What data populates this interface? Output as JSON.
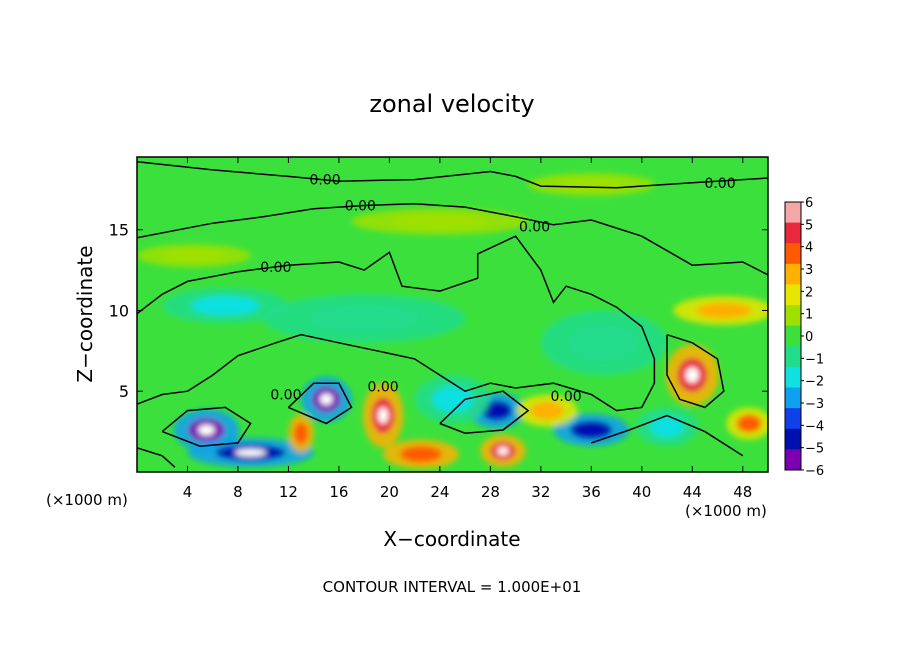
{
  "chart_data": {
    "type": "heatmap",
    "title": "zonal velocity",
    "xlabel": "X−coordinate",
    "ylabel": "Z−coordinate",
    "x_unit_left": "(×1000 m)",
    "x_unit_right": "(×1000 m)",
    "footer": "CONTOUR INTERVAL = 1.000E+01",
    "xlim": [
      0,
      50
    ],
    "ylim": [
      0,
      19.5
    ],
    "x_ticks": [
      4,
      8,
      12,
      16,
      20,
      24,
      28,
      32,
      36,
      40,
      44,
      48
    ],
    "y_ticks": [
      5,
      10,
      15
    ],
    "colorbar": {
      "range": [
        -6,
        6
      ],
      "ticks": [
        "6",
        "5",
        "4",
        "3",
        "2",
        "1",
        "0",
        "−1",
        "−2",
        "−3",
        "−4",
        "−5",
        "−6"
      ],
      "colors": [
        "#f4a7a7",
        "#e8283c",
        "#ff5a00",
        "#ffb000",
        "#e6e600",
        "#a0e000",
        "#3ce03c",
        "#22dc8c",
        "#10e0e0",
        "#10a0f0",
        "#1040e8",
        "#0010b0",
        "#7a00b0"
      ]
    },
    "contour_labels": [
      {
        "text": "0.00",
        "x": 14.9,
        "z": 18.1
      },
      {
        "text": "0.00",
        "x": 46.2,
        "z": 17.9
      },
      {
        "text": "0.00",
        "x": 17.7,
        "z": 16.5
      },
      {
        "text": "0.00",
        "x": 31.5,
        "z": 15.2
      },
      {
        "text": "0.00",
        "x": 11.0,
        "z": 12.7
      },
      {
        "text": "0.00",
        "x": 11.8,
        "z": 4.8
      },
      {
        "text": "0.00",
        "x": 19.5,
        "z": 5.3
      },
      {
        "text": "0.00",
        "x": 34.0,
        "z": 4.7
      }
    ],
    "features": [
      {
        "x": 5.5,
        "z": 2.6,
        "value": -5.5,
        "rx": 2.6,
        "rz": 1.3
      },
      {
        "x": 15.0,
        "z": 4.5,
        "value": -5.5,
        "rx": 2.0,
        "rz": 1.4
      },
      {
        "x": 28.5,
        "z": 3.8,
        "value": -4.5,
        "rx": 2.2,
        "rz": 1.1
      },
      {
        "x": 36.0,
        "z": 2.6,
        "value": -4.5,
        "rx": 3.0,
        "rz": 1.0
      },
      {
        "x": 9.0,
        "z": 1.2,
        "value": -5.0,
        "rx": 5.0,
        "rz": 0.9
      },
      {
        "x": 19.5,
        "z": 3.5,
        "value": 5.5,
        "rx": 1.6,
        "rz": 2.0
      },
      {
        "x": 13.0,
        "z": 2.4,
        "value": 4.5,
        "rx": 1.0,
        "rz": 1.2
      },
      {
        "x": 29.0,
        "z": 1.3,
        "value": 5.0,
        "rx": 1.8,
        "rz": 1.0
      },
      {
        "x": 44.0,
        "z": 6.0,
        "value": 5.5,
        "rx": 2.1,
        "rz": 1.9
      },
      {
        "x": 32.5,
        "z": 3.8,
        "value": 3.5,
        "rx": 2.4,
        "rz": 1.0
      },
      {
        "x": 22.5,
        "z": 1.1,
        "value": 4.5,
        "rx": 3.0,
        "rz": 0.9
      },
      {
        "x": 46.5,
        "z": 10.0,
        "value": 3.5,
        "rx": 4.0,
        "rz": 0.9
      },
      {
        "x": 48.5,
        "z": 3.0,
        "value": 4.0,
        "rx": 1.8,
        "rz": 1.0
      },
      {
        "x": 4.5,
        "z": 13.4,
        "value": 1.5,
        "rx": 4.5,
        "rz": 0.7
      },
      {
        "x": 24.0,
        "z": 15.5,
        "value": 1.5,
        "rx": 7.0,
        "rz": 0.8
      },
      {
        "x": 36.0,
        "z": 17.8,
        "value": 1.2,
        "rx": 5.0,
        "rz": 0.7
      },
      {
        "x": 7.0,
        "z": 10.3,
        "value": -2.0,
        "rx": 5.0,
        "rz": 1.1
      },
      {
        "x": 18.0,
        "z": 9.5,
        "value": -1.2,
        "rx": 8.0,
        "rz": 1.5
      },
      {
        "x": 37.0,
        "z": 8.0,
        "value": -1.0,
        "rx": 5.0,
        "rz": 2.0
      },
      {
        "x": 42.0,
        "z": 2.8,
        "value": -2.0,
        "rx": 2.5,
        "rz": 1.2
      },
      {
        "x": 25.0,
        "z": 4.5,
        "value": -1.5,
        "rx": 3.0,
        "rz": 1.5
      }
    ]
  }
}
